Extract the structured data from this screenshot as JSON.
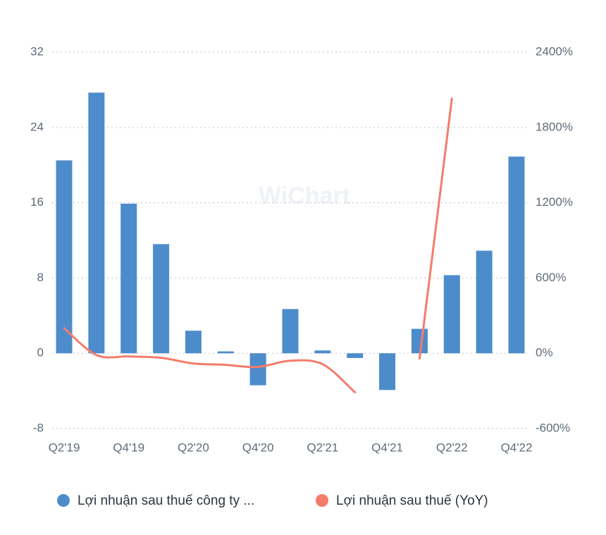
{
  "chart_data": {
    "type": "bar-line",
    "watermark": "WiChart",
    "categories": [
      "Q2'19",
      null,
      "Q4'19",
      null,
      "Q2'20",
      null,
      "Q4'20",
      null,
      "Q2'21",
      null,
      "Q4'21",
      null,
      "Q2'22",
      null,
      "Q4'22"
    ],
    "series": [
      {
        "name": "Lợi nhuận sau thuế công ty ...",
        "type": "bar",
        "color": "#4d8ccb",
        "values": [
          20.5,
          27.7,
          15.9,
          11.6,
          2.4,
          0.2,
          -3.4,
          4.7,
          0.3,
          -0.5,
          -3.9,
          2.6,
          8.3,
          10.9,
          20.9
        ]
      },
      {
        "name": "Lợi nhuận sau thuế (YoY)",
        "type": "line",
        "axis": "y2",
        "color": "#f47c6c",
        "values": [
          200,
          -14,
          -25,
          -36,
          -81,
          -92,
          -109,
          -59,
          -87,
          -311,
          null,
          -42,
          2030,
          null,
          null
        ]
      }
    ],
    "ylim": [
      -8,
      32
    ],
    "yticks": [
      -8,
      0,
      8,
      16,
      24,
      32
    ],
    "y2lim": [
      -600,
      2400
    ],
    "y2ticks": [
      {
        "value": -600,
        "label": "-600%"
      },
      {
        "value": 0,
        "label": "0%"
      },
      {
        "value": 600,
        "label": "600%"
      },
      {
        "value": 1200,
        "label": "1200%"
      },
      {
        "value": 1800,
        "label": "1800%"
      },
      {
        "value": 2400,
        "label": "2400%"
      }
    ],
    "grid": true
  }
}
